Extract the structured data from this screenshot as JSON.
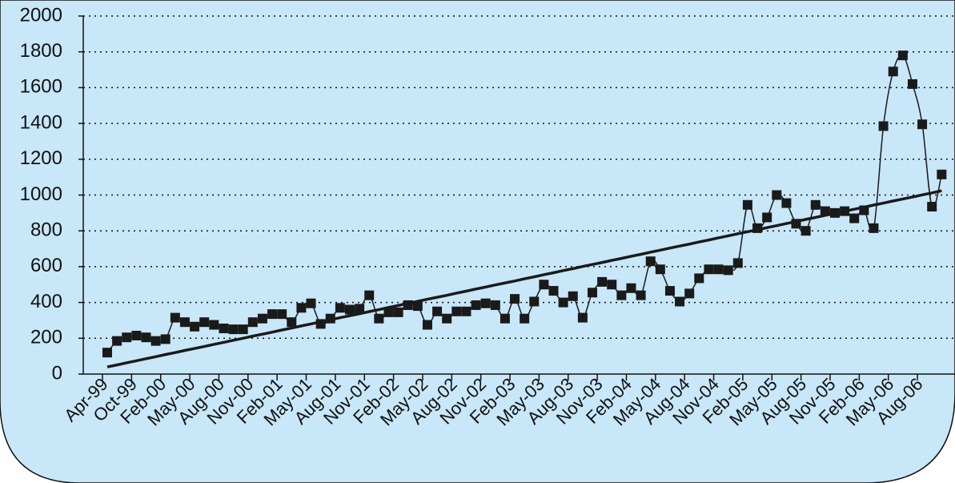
{
  "chart_data": {
    "type": "line",
    "categories": [
      "Apr-99",
      null,
      null,
      "Oct-99",
      null,
      null,
      "Feb-00",
      null,
      null,
      "May-00",
      null,
      null,
      "Aug-00",
      null,
      null,
      "Nov-00",
      null,
      null,
      "Feb-01",
      null,
      null,
      "May-01",
      null,
      null,
      "Aug-01",
      null,
      null,
      "Nov-01",
      null,
      null,
      "Feb-02",
      null,
      null,
      "May-02",
      null,
      null,
      "Aug-02",
      null,
      null,
      "Nov-02",
      null,
      null,
      "Feb-03",
      null,
      null,
      "May-03",
      null,
      null,
      "Aug-03",
      null,
      null,
      "Nov-03",
      null,
      null,
      "Feb-04",
      null,
      null,
      "May-04",
      null,
      null,
      "Aug-04",
      null,
      null,
      "Nov-04",
      null,
      null,
      "Feb-05",
      null,
      null,
      "May-05",
      null,
      null,
      "Aug-05",
      null,
      null,
      "Nov-05",
      null,
      null,
      "Feb-06",
      null,
      null,
      "May-06",
      null,
      null,
      "Aug-06",
      null,
      null
    ],
    "series": [
      {
        "color": "#1a1a1a",
        "markers": true,
        "smooth": true,
        "values": [
          120,
          185,
          205,
          215,
          205,
          185,
          195,
          315,
          290,
          265,
          290,
          275,
          255,
          250,
          250,
          290,
          310,
          335,
          335,
          290,
          370,
          395,
          280,
          310,
          370,
          360,
          365,
          440,
          310,
          345,
          345,
          385,
          380,
          275,
          350,
          310,
          350,
          350,
          385,
          395,
          385,
          310,
          420,
          310,
          405,
          500,
          465,
          400,
          435,
          315,
          455,
          515,
          500,
          440,
          480,
          440,
          630,
          585,
          465,
          405,
          450,
          535,
          585,
          585,
          580,
          620,
          945,
          815,
          875,
          1000,
          955,
          840,
          800,
          945,
          910,
          900,
          910,
          870,
          915,
          815,
          1385,
          1690,
          1780,
          1620,
          1395,
          935,
          1115
        ]
      },
      {
        "color": "#1a1a1a",
        "markers": false,
        "smooth": false,
        "values": [
          40,
          51,
          63,
          74,
          86,
          97,
          109,
          120,
          132,
          143,
          154,
          166,
          177,
          189,
          200,
          212,
          223,
          234,
          246,
          257,
          269,
          280,
          292,
          303,
          315,
          326,
          337,
          349,
          360,
          372,
          383,
          395,
          406,
          418,
          429,
          440,
          452,
          463,
          475,
          486,
          498,
          509,
          520,
          532,
          543,
          555,
          566,
          578,
          589,
          601,
          612,
          623,
          635,
          646,
          658,
          669,
          681,
          692,
          704,
          715,
          726,
          738,
          749,
          761,
          772,
          784,
          795,
          806,
          818,
          829,
          841,
          852,
          864,
          875,
          887,
          898,
          909,
          921,
          932,
          944,
          955,
          967,
          978,
          989,
          1001,
          1012,
          1024
        ]
      }
    ],
    "ylim": [
      0,
      2000
    ],
    "yticks": [
      0,
      200,
      400,
      600,
      800,
      1000,
      1200,
      1400,
      1600,
      1800,
      2000
    ],
    "grid": true
  }
}
